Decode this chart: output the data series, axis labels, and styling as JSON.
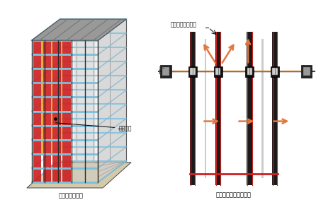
{
  "title_left": "制震装置配置図",
  "title_right": "制震外壁ロッキング図",
  "label_damper": "ハニカムダンパー",
  "label_device": "制震装置",
  "label_fl": "₂FL",
  "bg_color": "#ffffff",
  "building_base_color": "#d4c9a8",
  "building_steel_color": "#7bbfdf",
  "building_frame_color": "#2a2a2a",
  "damper_color_red": "#cc2222",
  "damper_color_yellow": "#e8a020",
  "right_col_color": "#1a1a1a",
  "right_wall_color": "#cc2222",
  "right_orange_arrow": "#e07840",
  "right_beam_color": "#cc6600"
}
